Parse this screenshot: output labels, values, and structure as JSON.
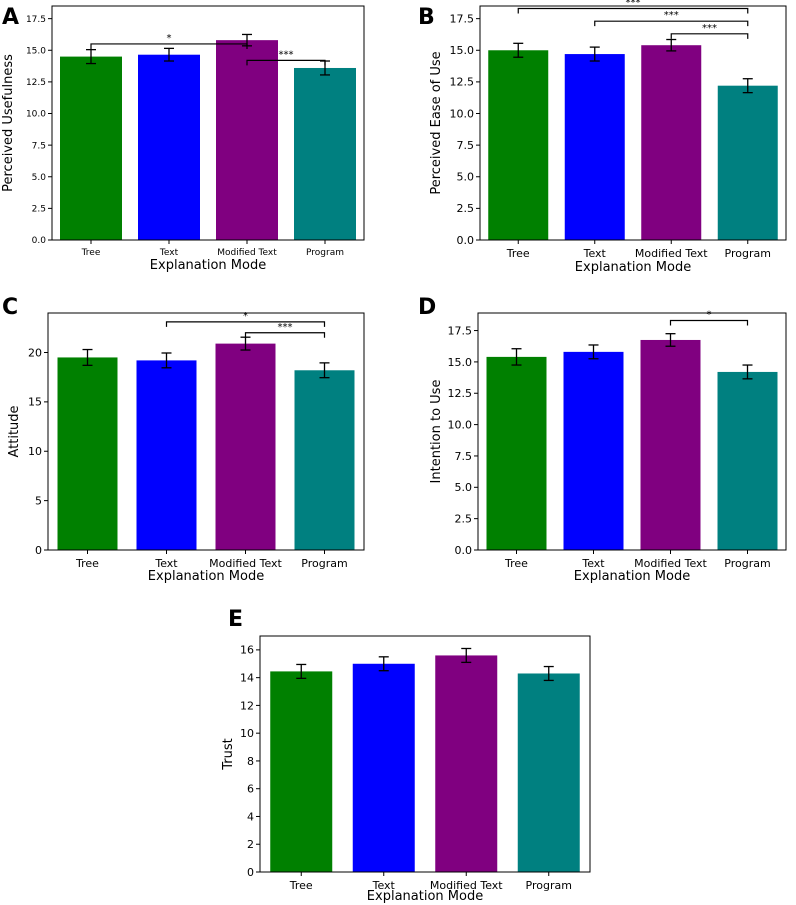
{
  "colors": [
    "#008000",
    "#0000ff",
    "#800080",
    "#008080"
  ],
  "chart_data": [
    {
      "panel": "A",
      "type": "bar",
      "categories": [
        "Tree",
        "Text",
        "Modified Text",
        "Program"
      ],
      "values": [
        14.5,
        14.65,
        15.8,
        13.6
      ],
      "errors": [
        0.55,
        0.5,
        0.45,
        0.55
      ],
      "xlabel": "Explanation Mode",
      "ylabel": "Perceived Usefulness",
      "ylim": [
        0,
        18.5
      ],
      "yticks": [
        "0.0",
        "2.5",
        "5.0",
        "7.5",
        "10.0",
        "12.5",
        "15.0",
        "17.5"
      ],
      "ytick_values": [
        0,
        2.5,
        5,
        7.5,
        10,
        12.5,
        15,
        17.5
      ],
      "significance": [
        {
          "from": 0,
          "to": 2,
          "label": "*"
        },
        {
          "from": 2,
          "to": 3,
          "label": "***"
        }
      ]
    },
    {
      "panel": "B",
      "type": "bar",
      "categories": [
        "Tree",
        "Text",
        "Modified Text",
        "Program"
      ],
      "values": [
        15.0,
        14.7,
        15.4,
        12.2
      ],
      "errors": [
        0.55,
        0.55,
        0.45,
        0.55
      ],
      "xlabel": "Explanation Mode",
      "ylabel": "Perceived Ease of Use",
      "ylim": [
        0,
        18.5
      ],
      "yticks": [
        "0.0",
        "2.5",
        "5.0",
        "7.5",
        "10.0",
        "12.5",
        "15.0",
        "17.5"
      ],
      "ytick_values": [
        0,
        2.5,
        5,
        7.5,
        10,
        12.5,
        15,
        17.5
      ],
      "significance": [
        {
          "from": 0,
          "to": 3,
          "label": "***"
        },
        {
          "from": 1,
          "to": 3,
          "label": "***"
        },
        {
          "from": 2,
          "to": 3,
          "label": "***"
        }
      ]
    },
    {
      "panel": "C",
      "type": "bar",
      "categories": [
        "Tree",
        "Text",
        "Modified Text",
        "Program"
      ],
      "values": [
        19.5,
        19.2,
        20.9,
        18.2
      ],
      "errors": [
        0.8,
        0.75,
        0.65,
        0.75
      ],
      "xlabel": "Explanation Mode",
      "ylabel": "Attitude",
      "ylim": [
        0,
        24
      ],
      "yticks": [
        "0",
        "5",
        "10",
        "15",
        "20"
      ],
      "ytick_values": [
        0,
        5,
        10,
        15,
        20
      ],
      "significance": [
        {
          "from": 1,
          "to": 3,
          "label": "*"
        },
        {
          "from": 2,
          "to": 3,
          "label": "***"
        }
      ]
    },
    {
      "panel": "D",
      "type": "bar",
      "categories": [
        "Tree",
        "Text",
        "Modified Text",
        "Program"
      ],
      "values": [
        15.4,
        15.8,
        16.75,
        14.2
      ],
      "errors": [
        0.65,
        0.55,
        0.5,
        0.55
      ],
      "xlabel": "Explanation Mode",
      "ylabel": "Intention to Use",
      "ylim": [
        0,
        18.9
      ],
      "yticks": [
        "0.0",
        "2.5",
        "5.0",
        "7.5",
        "10.0",
        "12.5",
        "15.0",
        "17.5"
      ],
      "ytick_values": [
        0,
        2.5,
        5,
        7.5,
        10,
        12.5,
        15,
        17.5
      ],
      "significance": [
        {
          "from": 2,
          "to": 3,
          "label": "*"
        }
      ]
    },
    {
      "panel": "E",
      "type": "bar",
      "categories": [
        "Tree",
        "Text",
        "Modified Text",
        "Program"
      ],
      "values": [
        14.45,
        15.0,
        15.6,
        14.3
      ],
      "errors": [
        0.5,
        0.5,
        0.5,
        0.5
      ],
      "xlabel": "Explanation Mode",
      "ylabel": "Trust",
      "ylim": [
        0,
        17
      ],
      "yticks": [
        "0",
        "2",
        "4",
        "6",
        "8",
        "10",
        "12",
        "14",
        "16"
      ],
      "ytick_values": [
        0,
        2,
        4,
        6,
        8,
        10,
        12,
        14,
        16
      ],
      "significance": []
    }
  ]
}
